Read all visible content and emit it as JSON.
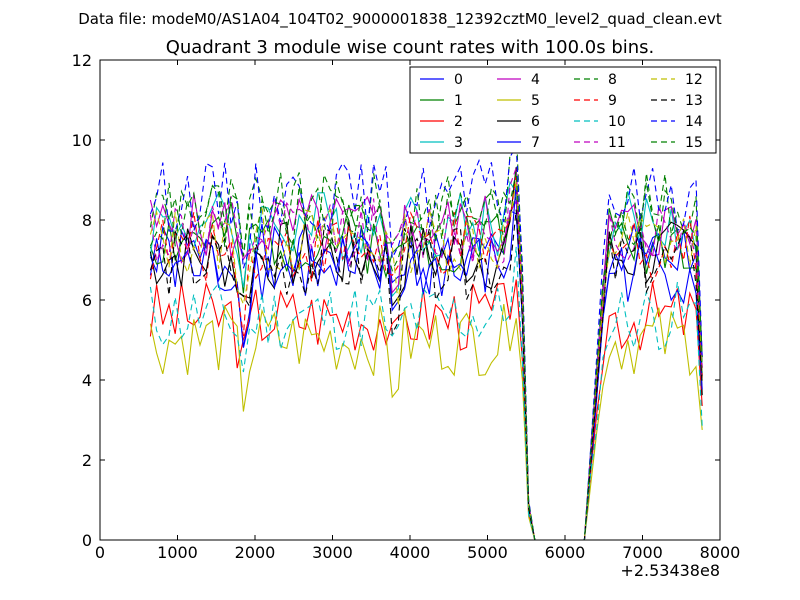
{
  "chart_data": {
    "type": "line",
    "suptitle": "Data file: modeM0/AS1A04_104T02_9000001838_12392cztM0_level2_quad_clean.evt",
    "title": "Quadrant 3 module wise count rates with 100.0s bins.",
    "xlabel": "",
    "ylabel": "",
    "x_offset_label": "+2.53438e8",
    "xlim": [
      0,
      8000
    ],
    "ylim": [
      0,
      12
    ],
    "xticks": [
      "0",
      "1000",
      "2000",
      "3000",
      "4000",
      "5000",
      "6000",
      "7000",
      "8000"
    ],
    "yticks": [
      "0",
      "2",
      "4",
      "6",
      "8",
      "10",
      "12"
    ],
    "legend_position": "top-right",
    "legend_columns": 4,
    "series": [
      {
        "name": "0",
        "color": "#0000ff",
        "dash": "solid",
        "level": 7.0,
        "seed": 1
      },
      {
        "name": "1",
        "color": "#008000",
        "dash": "solid",
        "level": 7.55,
        "seed": 2
      },
      {
        "name": "2",
        "color": "#ff0000",
        "dash": "solid",
        "level": 5.6,
        "seed": 3
      },
      {
        "name": "3",
        "color": "#00bfbf",
        "dash": "solid",
        "level": 7.9,
        "seed": 4
      },
      {
        "name": "4",
        "color": "#bf00bf",
        "dash": "solid",
        "level": 7.8,
        "seed": 5
      },
      {
        "name": "5",
        "color": "#bfbf00",
        "dash": "solid",
        "level": 5.0,
        "seed": 6
      },
      {
        "name": "6",
        "color": "#000000",
        "dash": "solid",
        "level": 7.1,
        "seed": 7
      },
      {
        "name": "7",
        "color": "#0000ff",
        "dash": "solid",
        "level": 6.8,
        "seed": 8
      },
      {
        "name": "8",
        "color": "#008000",
        "dash": "dashed",
        "level": 8.3,
        "seed": 9
      },
      {
        "name": "9",
        "color": "#ff0000",
        "dash": "dashed",
        "level": 7.3,
        "seed": 10
      },
      {
        "name": "10",
        "color": "#00bfbf",
        "dash": "dashed",
        "level": 5.6,
        "seed": 11
      },
      {
        "name": "11",
        "color": "#bf00bf",
        "dash": "dashed",
        "level": 7.7,
        "seed": 12
      },
      {
        "name": "12",
        "color": "#bfbf00",
        "dash": "dashed",
        "level": 7.5,
        "seed": 13
      },
      {
        "name": "13",
        "color": "#000000",
        "dash": "dashed",
        "level": 6.9,
        "seed": 14
      },
      {
        "name": "14",
        "color": "#0000ff",
        "dash": "dashed",
        "level": 8.6,
        "seed": 15
      },
      {
        "name": "15",
        "color": "#008000",
        "dash": "dashed",
        "level": 8.1,
        "seed": 16
      }
    ],
    "profile": {
      "bin_width": 100,
      "x_start": 650,
      "x_end": 7780,
      "dip_centers": [
        1850,
        3800
      ],
      "dip_depth": 1.3,
      "spike_x": 5350,
      "spike_extra": 1.8,
      "drop_start": 5450,
      "zero_start": 5600,
      "zero_end": 6250,
      "recover_end": 6550,
      "final_drop_x": 7780,
      "final_drop_factor": 0.55,
      "noise_amplitude": 0.9
    }
  }
}
